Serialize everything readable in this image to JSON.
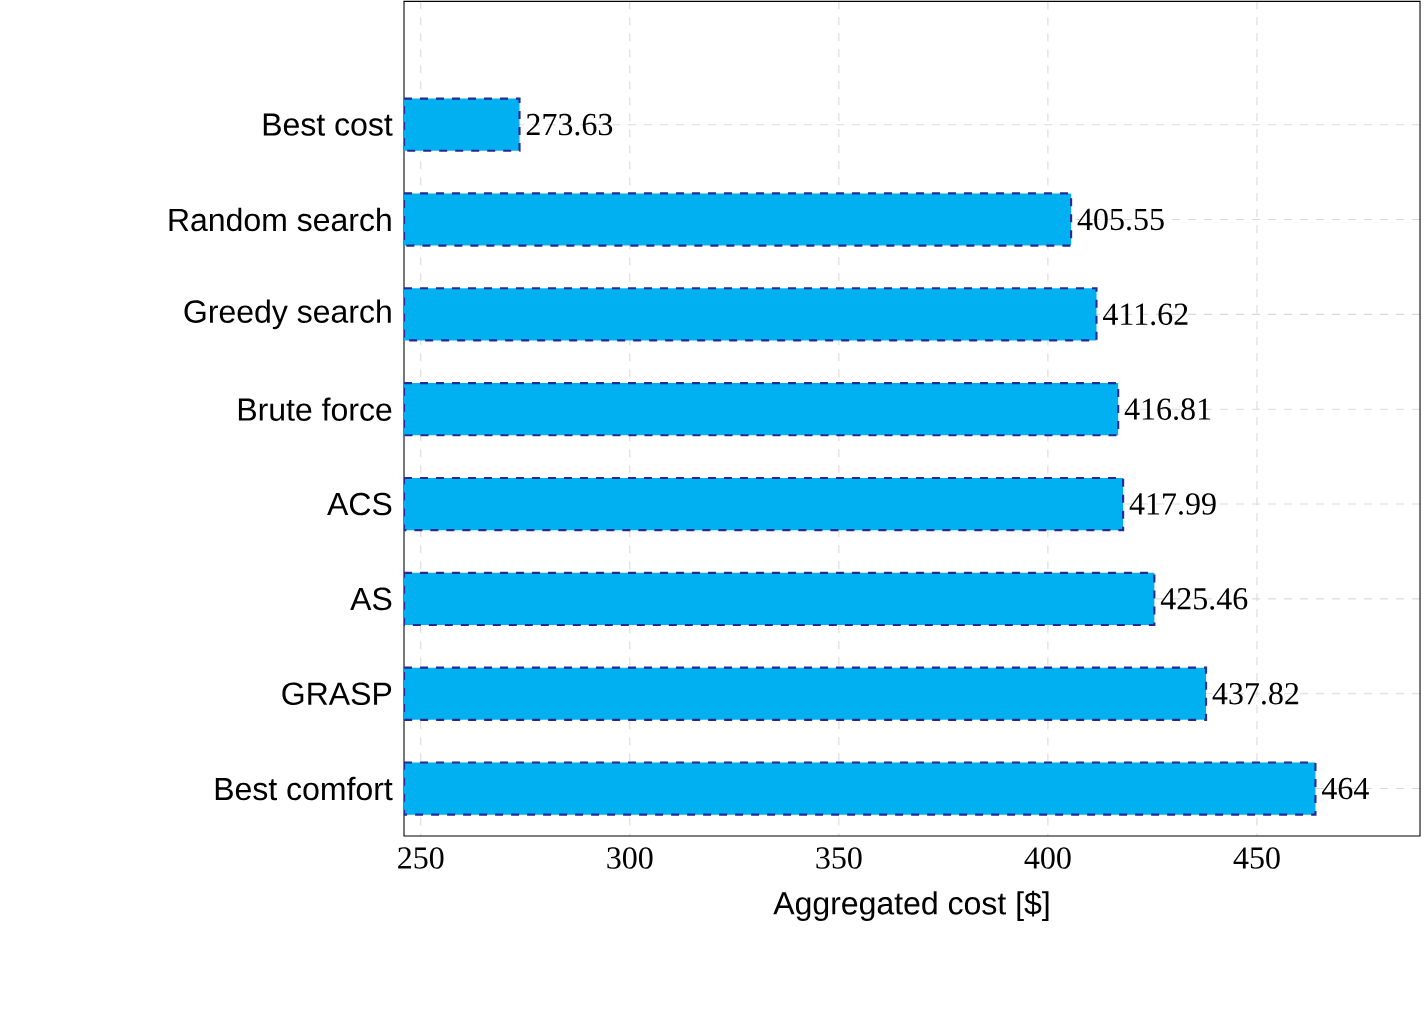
{
  "chart_data": {
    "type": "bar",
    "orientation": "horizontal",
    "xlabel": "Aggregated cost [$]",
    "categories": [
      "Best cost",
      "Random search",
      "Greedy search",
      "Brute force",
      "ACS",
      "AS",
      "GRASP",
      "Best comfort"
    ],
    "values": [
      273.63,
      405.55,
      411.62,
      416.81,
      417.99,
      425.46,
      437.82,
      464
    ],
    "color": "#00b0f0",
    "xlim": [
      246,
      489
    ],
    "xticks": [
      250,
      300,
      350,
      400,
      450
    ],
    "grid": true,
    "data_labels": true
  }
}
